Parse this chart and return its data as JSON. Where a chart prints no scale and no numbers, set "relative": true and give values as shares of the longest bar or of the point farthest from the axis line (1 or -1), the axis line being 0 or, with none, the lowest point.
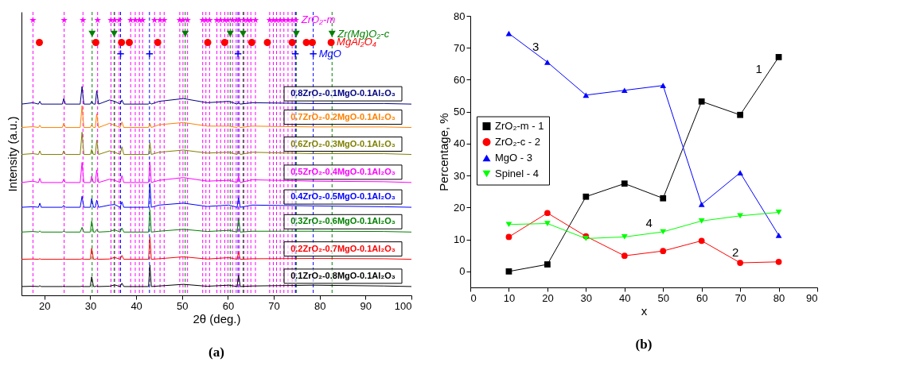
{
  "chart_data": [
    {
      "type": "line",
      "relative": true,
      "xlabel": "2θ (deg.)",
      "ylabel": "Intensity (a.u.)",
      "xlim": [
        15,
        100
      ],
      "xticks": [
        20,
        30,
        40,
        50,
        60,
        70,
        80,
        90,
        100
      ],
      "x": [
        15,
        17.5,
        18.7,
        19,
        19.3,
        23.9,
        24.2,
        24.6,
        27.8,
        28.2,
        28.6,
        30,
        30.3,
        30.7,
        31.1,
        31.4,
        31.8,
        34.2,
        35.3,
        36.5,
        36.9,
        37.3,
        42.7,
        43,
        43.3,
        45,
        50.3,
        55.5,
        60.2,
        62,
        62.3,
        62.7,
        65.3,
        78.6,
        94,
        100
      ],
      "series": [
        {
          "name": "0.8ZrO₂-0.1MgO-0.1Al₂O₃",
          "color": "#000080",
          "values": [
            0.695,
            0.7,
            0.695,
            0.705,
            0.695,
            0.695,
            0.715,
            0.695,
            0.695,
            0.759,
            0.695,
            0.695,
            0.705,
            0.695,
            0.695,
            0.744,
            0.695,
            0.71,
            0.705,
            0.695,
            0.71,
            0.695,
            0.695,
            0.7,
            0.695,
            0.705,
            0.715,
            0.7,
            0.705,
            0.695,
            0.7,
            0.695,
            0.7,
            0.697,
            0.697,
            0.695
          ]
        },
        {
          "name": "0.7ZrO₂-0.2MgO-0.1Al₂O₃",
          "color": "#ff8000",
          "values": [
            0.61,
            0.613,
            0.61,
            0.618,
            0.61,
            0.61,
            0.625,
            0.61,
            0.61,
            0.689,
            0.61,
            0.61,
            0.62,
            0.61,
            0.61,
            0.66,
            0.61,
            0.625,
            0.618,
            0.61,
            0.63,
            0.61,
            0.61,
            0.625,
            0.61,
            0.62,
            0.628,
            0.615,
            0.615,
            0.61,
            0.615,
            0.61,
            0.615,
            0.612,
            0.612,
            0.61
          ]
        },
        {
          "name": "0.6ZrO₂-0.3MgO-0.1Al₂O₃",
          "color": "#808000",
          "values": [
            0.512,
            0.515,
            0.512,
            0.525,
            0.512,
            0.512,
            0.525,
            0.512,
            0.512,
            0.593,
            0.512,
            0.512,
            0.53,
            0.512,
            0.512,
            0.564,
            0.512,
            0.525,
            0.52,
            0.512,
            0.54,
            0.512,
            0.512,
            0.555,
            0.512,
            0.52,
            0.528,
            0.517,
            0.52,
            0.512,
            0.525,
            0.512,
            0.52,
            0.515,
            0.515,
            0.512
          ]
        },
        {
          "name": "0.5ZrO₂-0.4MgO-0.1Al₂O₃",
          "color": "#ff00ff",
          "values": [
            0.41,
            0.415,
            0.41,
            0.425,
            0.41,
            0.41,
            0.422,
            0.41,
            0.41,
            0.483,
            0.41,
            0.41,
            0.433,
            0.41,
            0.41,
            0.456,
            0.41,
            0.422,
            0.418,
            0.41,
            0.435,
            0.41,
            0.41,
            0.485,
            0.41,
            0.418,
            0.428,
            0.415,
            0.418,
            0.41,
            0.433,
            0.41,
            0.42,
            0.415,
            0.413,
            0.41
          ]
        },
        {
          "name": "0.4ZrO₂-0.5MgO-0.1Al₂O₃",
          "color": "#0000ff",
          "values": [
            0.32,
            0.322,
            0.32,
            0.335,
            0.32,
            0.32,
            0.327,
            0.32,
            0.32,
            0.36,
            0.32,
            0.32,
            0.352,
            0.32,
            0.32,
            0.346,
            0.32,
            0.328,
            0.33,
            0.32,
            0.34,
            0.32,
            0.32,
            0.407,
            0.32,
            0.328,
            0.335,
            0.323,
            0.328,
            0.32,
            0.355,
            0.32,
            0.328,
            0.325,
            0.322,
            0.32
          ]
        },
        {
          "name": "0.3ZrO₂-0.6MgO-0.1Al₂O₃",
          "color": "#008000",
          "values": [
            0.23,
            0.232,
            0.23,
            0.234,
            0.23,
            0.23,
            0.234,
            0.23,
            0.23,
            0.247,
            0.23,
            0.23,
            0.27,
            0.23,
            0.23,
            0.24,
            0.23,
            0.232,
            0.238,
            0.23,
            0.245,
            0.23,
            0.23,
            0.311,
            0.23,
            0.233,
            0.24,
            0.232,
            0.236,
            0.23,
            0.279,
            0.23,
            0.233,
            0.233,
            0.232,
            0.23
          ]
        },
        {
          "name": "0.2ZrO₂-0.7MgO-0.1Al₂O₃",
          "color": "#ff0000",
          "values": [
            0.131,
            0.132,
            0.131,
            0.133,
            0.131,
            0.131,
            0.132,
            0.131,
            0.131,
            0.133,
            0.131,
            0.131,
            0.171,
            0.131,
            0.131,
            0.133,
            0.131,
            0.132,
            0.138,
            0.131,
            0.145,
            0.131,
            0.131,
            0.212,
            0.131,
            0.133,
            0.14,
            0.132,
            0.137,
            0.131,
            0.157,
            0.131,
            0.133,
            0.134,
            0.133,
            0.131
          ]
        },
        {
          "name": "0.1ZrO₂-0.8MgO-0.1Al₂O₃",
          "color": "#000000",
          "values": [
            0.032,
            0.033,
            0.032,
            0.035,
            0.032,
            0.032,
            0.033,
            0.032,
            0.032,
            0.033,
            0.032,
            0.032,
            0.067,
            0.032,
            0.032,
            0.034,
            0.032,
            0.033,
            0.038,
            0.032,
            0.044,
            0.032,
            0.032,
            0.11,
            0.032,
            0.034,
            0.04,
            0.033,
            0.037,
            0.032,
            0.073,
            0.032,
            0.034,
            0.037,
            0.034,
            0.032
          ]
        },
        {
          "type": "scatter",
          "name": "ZrO₂-m",
          "color": "#ff00ff",
          "marker": "star",
          "x": [
            17.5,
            24.3,
            28.4,
            31.6,
            34.5,
            35.3,
            36.3,
            38.8,
            39.8,
            40.7,
            41.4,
            44.0,
            45.2,
            46.1,
            49.5,
            50.2,
            51.2,
            54.5,
            55.2,
            56.0,
            57.6,
            58.4,
            59.3,
            60.0,
            61.0,
            61.8,
            62.5,
            63.5,
            64.3,
            65.0,
            66.0,
            69.1,
            69.9,
            70.6,
            71.4,
            72.2,
            73.1,
            74.0,
            74.8
          ],
          "values": [
            1,
            1,
            1,
            1,
            1,
            1,
            1,
            1,
            1,
            1,
            1,
            1,
            1,
            1,
            1,
            1,
            1,
            1,
            1,
            1,
            1,
            1,
            1,
            1,
            1,
            1,
            1,
            1,
            1,
            1,
            1,
            1,
            1,
            1,
            1,
            1,
            1,
            1,
            1
          ]
        },
        {
          "type": "scatter",
          "name": "Zr(Mg)O₂-c",
          "color": "#008000",
          "marker": "triangle-down",
          "x": [
            30.4,
            35.2,
            50.7,
            60.5,
            63.3,
            74.9,
            82.7
          ],
          "values": [
            0.95,
            0.95,
            0.95,
            0.95,
            0.95,
            0.95,
            0.95
          ]
        },
        {
          "type": "scatter",
          "name": "MgAl₂O₄",
          "color": "#ff0000",
          "marker": "circle",
          "x": [
            18.9,
            31.2,
            36.8,
            38.5,
            44.7,
            55.6,
            59.3,
            65.2,
            68.6,
            74.0,
            77.1,
            78.4,
            82.5
          ],
          "values": [
            0.919,
            0.919,
            0.919,
            0.919,
            0.919,
            0.919,
            0.919,
            0.919,
            0.919,
            0.919,
            0.919,
            0.919,
            0.919
          ]
        },
        {
          "type": "scatter",
          "name": "MgO",
          "color": "#0000ff",
          "marker": "cross",
          "x": [
            36.6,
            42.9,
            62.2,
            74.7,
            78.6
          ],
          "values": [
            0.878,
            0.878,
            0.878,
            0.878,
            0.878
          ]
        }
      ],
      "ref_lines": [
        {
          "axis": "x",
          "value": 17.5,
          "color": "#ff00ff",
          "line_style": "dashed"
        },
        {
          "axis": "x",
          "value": 24.3,
          "color": "#ff00ff",
          "line_style": "dashed"
        },
        {
          "axis": "x",
          "value": 28.4,
          "color": "#ff00ff",
          "line_style": "dashed"
        },
        {
          "axis": "x",
          "value": 31.6,
          "color": "#ff00ff",
          "line_style": "dashed"
        },
        {
          "axis": "x",
          "value": 34.5,
          "color": "#ff00ff",
          "line_style": "dashed"
        },
        {
          "axis": "x",
          "value": 35.3,
          "color": "#ff00ff",
          "line_style": "dashed"
        },
        {
          "axis": "x",
          "value": 36.3,
          "color": "#ff00ff",
          "line_style": "dashed"
        },
        {
          "axis": "x",
          "value": 38.8,
          "color": "#ff00ff",
          "line_style": "dashed"
        },
        {
          "axis": "x",
          "value": 39.8,
          "color": "#ff00ff",
          "line_style": "dashed"
        },
        {
          "axis": "x",
          "value": 40.7,
          "color": "#ff00ff",
          "line_style": "dashed"
        },
        {
          "axis": "x",
          "value": 41.4,
          "color": "#ff00ff",
          "line_style": "dashed"
        },
        {
          "axis": "x",
          "value": 44.0,
          "color": "#ff00ff",
          "line_style": "dashed"
        },
        {
          "axis": "x",
          "value": 45.2,
          "color": "#ff00ff",
          "line_style": "dashed"
        },
        {
          "axis": "x",
          "value": 46.1,
          "color": "#ff00ff",
          "line_style": "dashed"
        },
        {
          "axis": "x",
          "value": 49.5,
          "color": "#ff00ff",
          "line_style": "dashed"
        },
        {
          "axis": "x",
          "value": 50.2,
          "color": "#ff00ff",
          "line_style": "dashed"
        },
        {
          "axis": "x",
          "value": 51.2,
          "color": "#ff00ff",
          "line_style": "dashed"
        },
        {
          "axis": "x",
          "value": 54.5,
          "color": "#ff00ff",
          "line_style": "dashed"
        },
        {
          "axis": "x",
          "value": 55.2,
          "color": "#ff00ff",
          "line_style": "dashed"
        },
        {
          "axis": "x",
          "value": 56.0,
          "color": "#ff00ff",
          "line_style": "dashed"
        },
        {
          "axis": "x",
          "value": 57.6,
          "color": "#ff00ff",
          "line_style": "dashed"
        },
        {
          "axis": "x",
          "value": 58.4,
          "color": "#ff00ff",
          "line_style": "dashed"
        },
        {
          "axis": "x",
          "value": 59.3,
          "color": "#ff00ff",
          "line_style": "dashed"
        },
        {
          "axis": "x",
          "value": 60.0,
          "color": "#ff00ff",
          "line_style": "dashed"
        },
        {
          "axis": "x",
          "value": 61.0,
          "color": "#ff00ff",
          "line_style": "dashed"
        },
        {
          "axis": "x",
          "value": 61.8,
          "color": "#ff00ff",
          "line_style": "dashed"
        },
        {
          "axis": "x",
          "value": 62.5,
          "color": "#ff00ff",
          "line_style": "dashed"
        },
        {
          "axis": "x",
          "value": 63.5,
          "color": "#ff00ff",
          "line_style": "dashed"
        },
        {
          "axis": "x",
          "value": 64.3,
          "color": "#ff00ff",
          "line_style": "dashed"
        },
        {
          "axis": "x",
          "value": 65.0,
          "color": "#ff00ff",
          "line_style": "dashed"
        },
        {
          "axis": "x",
          "value": 66.0,
          "color": "#ff00ff",
          "line_style": "dashed"
        },
        {
          "axis": "x",
          "value": 69.1,
          "color": "#ff00ff",
          "line_style": "dashed"
        },
        {
          "axis": "x",
          "value": 69.9,
          "color": "#ff00ff",
          "line_style": "dashed"
        },
        {
          "axis": "x",
          "value": 70.6,
          "color": "#ff00ff",
          "line_style": "dashed"
        },
        {
          "axis": "x",
          "value": 71.4,
          "color": "#ff00ff",
          "line_style": "dashed"
        },
        {
          "axis": "x",
          "value": 72.2,
          "color": "#ff00ff",
          "line_style": "dashed"
        },
        {
          "axis": "x",
          "value": 73.1,
          "color": "#ff00ff",
          "line_style": "dashed"
        },
        {
          "axis": "x",
          "value": 74.0,
          "color": "#ff00ff",
          "line_style": "dashed"
        },
        {
          "axis": "x",
          "value": 74.8,
          "color": "#ff00ff",
          "line_style": "dashed"
        },
        {
          "axis": "x",
          "value": 30.4,
          "color": "#008000",
          "line_style": "dashed"
        },
        {
          "axis": "x",
          "value": 35.2,
          "color": "#008000",
          "line_style": "dashed"
        },
        {
          "axis": "x",
          "value": 50.7,
          "color": "#008000",
          "line_style": "dashed"
        },
        {
          "axis": "x",
          "value": 60.5,
          "color": "#008000",
          "line_style": "dashed"
        },
        {
          "axis": "x",
          "value": 63.3,
          "color": "#008000",
          "line_style": "dashed"
        },
        {
          "axis": "x",
          "value": 74.9,
          "color": "#008000",
          "line_style": "dashed"
        },
        {
          "axis": "x",
          "value": 82.7,
          "color": "#008000",
          "line_style": "dashed"
        },
        {
          "axis": "x",
          "value": 36.6,
          "color": "#0000ff",
          "line_style": "dashed"
        },
        {
          "axis": "x",
          "value": 42.9,
          "color": "#0000ff",
          "line_style": "dashed"
        },
        {
          "axis": "x",
          "value": 62.2,
          "color": "#0000ff",
          "line_style": "dashed"
        },
        {
          "axis": "x",
          "value": 74.7,
          "color": "#0000ff",
          "line_style": "dashed"
        },
        {
          "axis": "x",
          "value": 78.6,
          "color": "#0000ff",
          "line_style": "dashed"
        }
      ],
      "annotations": [
        "(a)"
      ]
    },
    {
      "type": "line",
      "xlabel": "x",
      "ylabel": "Percentage, %",
      "xlim": [
        0,
        90
      ],
      "xticks": [
        0,
        10,
        20,
        30,
        40,
        50,
        60,
        70,
        80,
        90
      ],
      "ylim": [
        -5,
        80
      ],
      "yticks": [
        0,
        10,
        20,
        30,
        40,
        50,
        60,
        70,
        80
      ],
      "legend": "left",
      "x": [
        10,
        20,
        30,
        40,
        50,
        60,
        70,
        80
      ],
      "series": [
        {
          "name": "ZrO₂-m - 1",
          "color": "#000000",
          "marker": "square",
          "values": [
            0,
            2.2,
            23.4,
            27.5,
            22.9,
            53.2,
            49,
            67.1
          ]
        },
        {
          "name": "ZrO₂-c - 2",
          "color": "#ff0000",
          "marker": "circle",
          "values": [
            10.8,
            18.3,
            11.0,
            4.9,
            6.4,
            9.6,
            2.7,
            3.0
          ]
        },
        {
          "name": "MgO - 3",
          "color": "#0000ff",
          "marker": "triangle",
          "values": [
            74.5,
            65.5,
            55.2,
            56.7,
            58.2,
            21.0,
            30.9,
            11.3
          ]
        },
        {
          "name": "Spinel - 4",
          "color": "#00ff00",
          "marker": "triangle-down",
          "values": [
            14.7,
            15.0,
            10.3,
            10.8,
            12.4,
            15.8,
            17.4,
            18.5
          ]
        }
      ],
      "annotations": [
        {
          "text": "1",
          "x": 76.1,
          "y": 60.0
        },
        {
          "text": "2",
          "x": 70,
          "y": 2.7
        },
        {
          "text": "3",
          "x": 18.2,
          "y": 67.1
        },
        {
          "text": "4",
          "x": 47.6,
          "y": 12.0
        },
        "(b)"
      ]
    }
  ]
}
